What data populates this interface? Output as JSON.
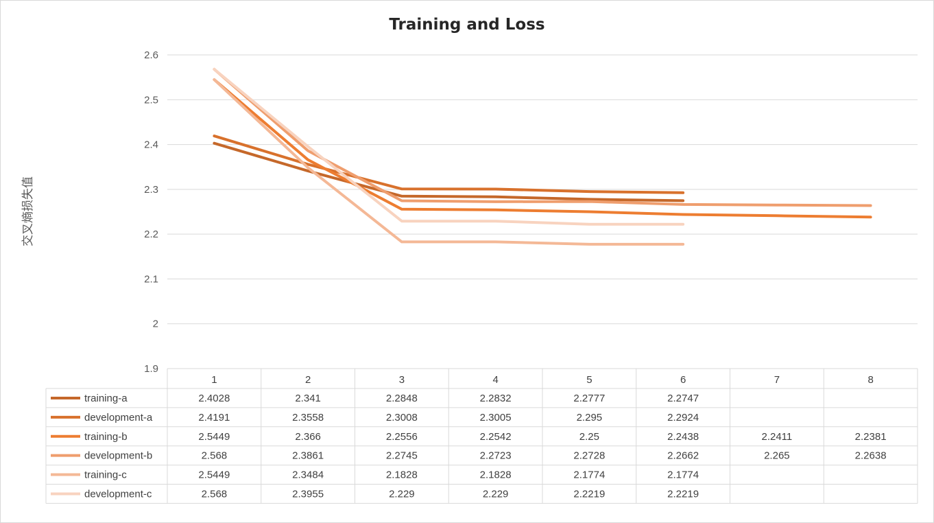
{
  "chart_data": {
    "type": "line",
    "title": "Training and Loss",
    "ylabel": "交叉熵损失值",
    "xlabel": "",
    "ylim": [
      1.9,
      2.6
    ],
    "yticks": [
      "1.9",
      "2",
      "2.1",
      "2.2",
      "2.3",
      "2.4",
      "2.5",
      "2.6"
    ],
    "categories": [
      "1",
      "2",
      "3",
      "4",
      "5",
      "6",
      "7",
      "8"
    ],
    "grid": true,
    "legend": "data-table",
    "series": [
      {
        "name": "training-a",
        "color": "#c5682a",
        "values": [
          2.4028,
          2.341,
          2.2848,
          2.2832,
          2.2777,
          2.2747,
          null,
          null
        ],
        "labels": [
          "2.4028",
          "2.341",
          "2.2848",
          "2.2832",
          "2.2777",
          "2.2747",
          "",
          ""
        ]
      },
      {
        "name": "development-a",
        "color": "#d8712c",
        "values": [
          2.4191,
          2.3558,
          2.3008,
          2.3005,
          2.295,
          2.2924,
          null,
          null
        ],
        "labels": [
          "2.4191",
          "2.3558",
          "2.3008",
          "2.3005",
          "2.295",
          "2.2924",
          "",
          ""
        ]
      },
      {
        "name": "training-b",
        "color": "#ed7d31",
        "values": [
          2.5449,
          2.366,
          2.2556,
          2.2542,
          2.25,
          2.2438,
          2.2411,
          2.2381
        ],
        "labels": [
          "2.5449",
          "2.366",
          "2.2556",
          "2.2542",
          "2.25",
          "2.2438",
          "2.2411",
          "2.2381"
        ]
      },
      {
        "name": "development-b",
        "color": "#ef9e6e",
        "values": [
          2.568,
          2.3861,
          2.2745,
          2.2723,
          2.2728,
          2.2662,
          2.265,
          2.2638
        ],
        "labels": [
          "2.568",
          "2.3861",
          "2.2745",
          "2.2723",
          "2.2728",
          "2.2662",
          "2.265",
          "2.2638"
        ]
      },
      {
        "name": "training-c",
        "color": "#f4b896",
        "values": [
          2.5449,
          2.3484,
          2.1828,
          2.1828,
          2.1774,
          2.1774,
          null,
          null
        ],
        "labels": [
          "2.5449",
          "2.3484",
          "2.1828",
          "2.1828",
          "2.1774",
          "2.1774",
          "",
          ""
        ]
      },
      {
        "name": "development-c",
        "color": "#f8d3bf",
        "values": [
          2.568,
          2.3955,
          2.229,
          2.229,
          2.2219,
          2.2219,
          null,
          null
        ],
        "labels": [
          "2.568",
          "2.3955",
          "2.229",
          "2.229",
          "2.2219",
          "2.2219",
          "",
          ""
        ]
      }
    ]
  }
}
